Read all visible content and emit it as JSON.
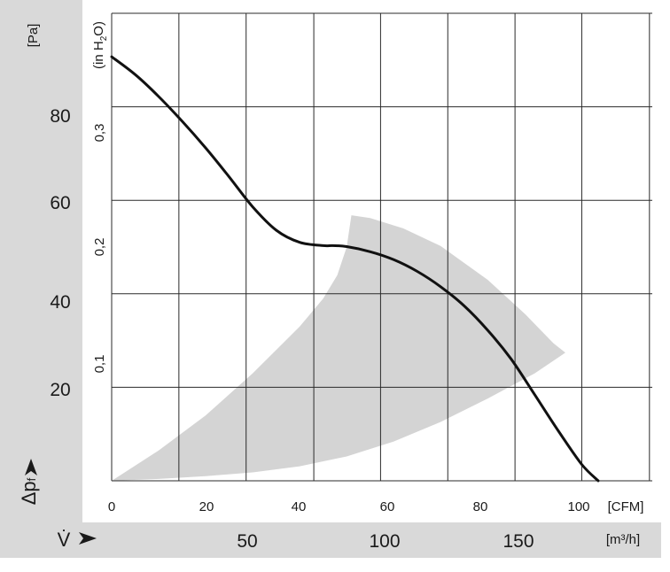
{
  "chart_data": {
    "type": "line",
    "title": "",
    "axes": {
      "x_primary": {
        "unit": "[CFM]",
        "ticks": [
          "0",
          "20",
          "40",
          "60",
          "80",
          "100"
        ],
        "range": [
          0,
          115
        ]
      },
      "x_secondary": {
        "symbol": "V̇",
        "unit": "[m³/h]",
        "ticks": [
          "50",
          "100",
          "150"
        ]
      },
      "y_primary": {
        "symbol": "Δp",
        "subscript": "f",
        "unit": "[Pa]",
        "ticks": [
          "20",
          "40",
          "60",
          "80"
        ],
        "range": [
          0,
          100
        ]
      },
      "y_secondary": {
        "unit_prefix": "(in H",
        "unit_sub": "2",
        "unit_suffix": "O)",
        "ticks": [
          "0,1",
          "0,2",
          "0,3"
        ]
      }
    },
    "grid": true,
    "series": [
      {
        "type": "line",
        "x": [
          0,
          5,
          10,
          15,
          20,
          25,
          30,
          35,
          40,
          45,
          47,
          50,
          55,
          60,
          65,
          70,
          75,
          80,
          85,
          90,
          95,
          100,
          103.5
        ],
        "y": [
          90.7,
          86.9,
          82.2,
          76.9,
          71.2,
          65.0,
          58.6,
          53.6,
          51.0,
          50.3,
          50.3,
          50.1,
          49.0,
          47.3,
          44.8,
          41.5,
          37.4,
          32.2,
          26.0,
          18.4,
          10.7,
          3.5,
          0
        ]
      }
    ],
    "operating_region": {
      "upper_left_edge": {
        "x": [
          0,
          10,
          20,
          30,
          40,
          45,
          48,
          50,
          51
        ],
        "y": [
          0,
          6.5,
          14.0,
          23.0,
          33.0,
          39.0,
          44.0,
          50.0,
          56.8
        ]
      },
      "top_edge": {
        "x": [
          51,
          55,
          62,
          70,
          80,
          88,
          94,
          96.5
        ],
        "y": [
          56.8,
          56.2,
          54.0,
          50.2,
          43.0,
          35.6,
          29.4,
          27.4
        ]
      },
      "lower_edge": {
        "x": [
          96.5,
          90,
          80,
          70,
          60,
          50,
          40,
          30,
          20,
          10,
          0
        ],
        "y": [
          27.4,
          23.0,
          17.6,
          12.6,
          8.4,
          5.2,
          3.1,
          1.8,
          1.0,
          0.4,
          0
        ]
      }
    }
  }
}
